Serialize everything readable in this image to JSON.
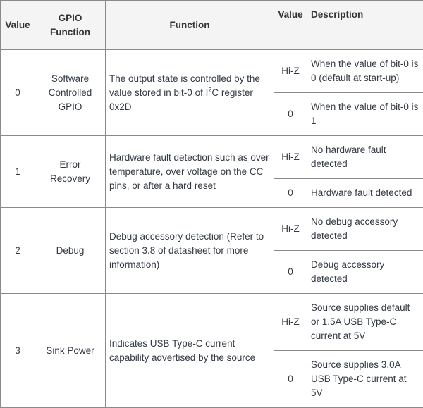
{
  "headers": [
    "Value",
    "GPIO Function",
    "Function",
    "Value",
    "Description"
  ],
  "rows": [
    {
      "value": "0",
      "gpio_function": "Software Controlled GPIO",
      "function_pre": "The output state is controlled by the value stored in bit-0 of I",
      "function_sup": "2",
      "function_post": "C register 0x2D",
      "states": [
        {
          "value": "Hi-Z",
          "description": "When the value of bit-0 is 0 (default at start-up)"
        },
        {
          "value": "0",
          "description": "When the value of bit-0 is 1"
        }
      ]
    },
    {
      "value": "1",
      "gpio_function": "Error Recovery",
      "function": "Hardware fault detection such as over temperature, over voltage on the CC pins, or after a hard reset",
      "states": [
        {
          "value": "Hi-Z",
          "description": "No hardware fault detected"
        },
        {
          "value": "0",
          "description": "Hardware fault detected"
        }
      ]
    },
    {
      "value": "2",
      "gpio_function": "Debug",
      "function": "Debug accessory detection (Refer to section 3.8 of datasheet for more information)",
      "states": [
        {
          "value": "Hi-Z",
          "description": "No debug accessory detected"
        },
        {
          "value": "0",
          "description": "Debug accessory detected"
        }
      ]
    },
    {
      "value": "3",
      "gpio_function": "Sink Power",
      "function": "Indicates USB Type-C current capability advertised by the source",
      "states": [
        {
          "value": "Hi-Z",
          "description": "Source supplies default or 1.5A USB Type-C current at 5V"
        },
        {
          "value": "0",
          "description": "Source supplies 3.0A USB Type-C current at 5V"
        }
      ]
    }
  ]
}
